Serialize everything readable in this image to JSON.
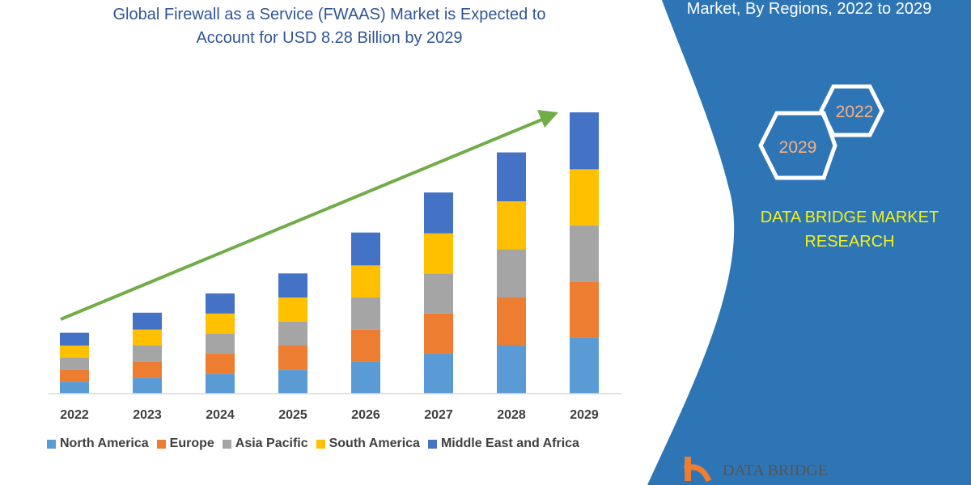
{
  "title_lines": [
    "Global Firewall as a Service (FWAAS) Market is Expected to",
    "Account for USD 8.28 Billion by 2029"
  ],
  "side_panel": {
    "title": "Market, By Regions, 2022 to 2029",
    "hex_years": [
      "2022",
      "2029"
    ],
    "brand_lines": [
      "DATA BRIDGE MARKET",
      "RESEARCH"
    ],
    "logo_text": "DATA BRIDGE",
    "panel_color": "#2e75b6",
    "brand_color": "#f2f21a",
    "hex_text_color": "#f4b183"
  },
  "chart_data": {
    "type": "bar",
    "stacked": true,
    "categories": [
      "2022",
      "2023",
      "2024",
      "2025",
      "2026",
      "2027",
      "2028",
      "2029"
    ],
    "series": [
      {
        "name": "North America",
        "color": "#5b9bd5",
        "values": [
          15,
          20,
          25,
          30,
          40,
          50,
          60,
          70
        ]
      },
      {
        "name": "Europe",
        "color": "#ed7d31",
        "values": [
          15,
          20,
          25,
          30,
          40,
          50,
          60,
          70
        ]
      },
      {
        "name": "Asia Pacific",
        "color": "#a5a5a5",
        "values": [
          15,
          20,
          25,
          30,
          40,
          50,
          60,
          70
        ]
      },
      {
        "name": "South America",
        "color": "#ffc000",
        "values": [
          15,
          20,
          25,
          30,
          40,
          50,
          60,
          70
        ]
      },
      {
        "name": "Middle East and Africa",
        "color": "#4472c4",
        "values": [
          16,
          21,
          25,
          30,
          41,
          51,
          61,
          71
        ]
      }
    ],
    "ylim": [
      0,
      360
    ],
    "grid": false,
    "y_axis_labels": false,
    "legend_placement": "bottom",
    "trend_arrow_color": "#70ad47"
  }
}
